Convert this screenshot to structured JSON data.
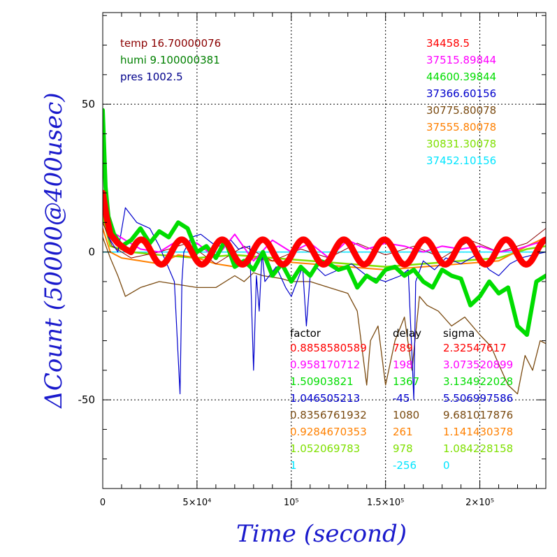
{
  "chart_data": {
    "type": "line",
    "title": "",
    "xlabel": "Time (second)",
    "ylabel": "ΔCount (50000@400usec)",
    "xlim": [
      0,
      235000
    ],
    "ylim": [
      -80,
      81
    ],
    "grid": true,
    "x_ticks": [
      {
        "value": 0,
        "label": "0"
      },
      {
        "value": 50000,
        "label": "5×10⁴"
      },
      {
        "value": 100000,
        "label": "10⁵"
      },
      {
        "value": 150000,
        "label": "1.5×10⁵"
      },
      {
        "value": 200000,
        "label": "2×10⁵"
      }
    ],
    "y_ticks": [
      {
        "value": 50,
        "label": "50"
      },
      {
        "value": 0,
        "label": "0"
      },
      {
        "value": -50,
        "label": "-50"
      }
    ],
    "env_labels": [
      {
        "text": "temp 16.70000076",
        "color": "#8b0000"
      },
      {
        "text": "humi 9.100000381",
        "color": "#008000"
      },
      {
        "text": "pres 1002.5",
        "color": "#00008b"
      }
    ],
    "base_counts": [
      {
        "text": "34458.5",
        "color": "#ff0000"
      },
      {
        "text": "37515.89844",
        "color": "#ff00ff"
      },
      {
        "text": "44600.39844",
        "color": "#00dd00"
      },
      {
        "text": "37366.60156",
        "color": "#0000cc"
      },
      {
        "text": "30775.80078",
        "color": "#7a4a10"
      },
      {
        "text": "37555.80078",
        "color": "#ff8000"
      },
      {
        "text": "30831.30078",
        "color": "#7fe000"
      },
      {
        "text": "37452.10156",
        "color": "#00e5ff"
      }
    ],
    "table_headers": [
      "factor",
      "delay",
      "sigma"
    ],
    "table_rows": [
      {
        "factor": "0.8858580589",
        "delay": "789",
        "sigma": "2.32547617",
        "color": "#ff0000"
      },
      {
        "factor": "0.958170712",
        "delay": "198",
        "sigma": "3.073520899",
        "color": "#ff00ff"
      },
      {
        "factor": "1.50903821",
        "delay": "1367",
        "sigma": "3.134922028",
        "color": "#00dd00"
      },
      {
        "factor": "1.046505213",
        "delay": "-45",
        "sigma": "5.506997586",
        "color": "#0000cc"
      },
      {
        "factor": "0.8356761932",
        "delay": "1080",
        "sigma": "9.681017876",
        "color": "#7a4a10"
      },
      {
        "factor": "0.9284670353",
        "delay": "261",
        "sigma": "1.141430378",
        "color": "#ff8000"
      },
      {
        "factor": "1.052069783",
        "delay": "978",
        "sigma": "1.084228158",
        "color": "#7fe000"
      },
      {
        "factor": "1",
        "delay": "-256",
        "sigma": "0",
        "color": "#00e5ff"
      }
    ],
    "series": [
      {
        "color": "#00e5ff",
        "width": 1.5,
        "x": [
          0,
          20000,
          50000,
          100000,
          150000,
          200000,
          235000
        ],
        "y": [
          0,
          0,
          0,
          0,
          0,
          0,
          0
        ]
      },
      {
        "color": "#7fe000",
        "width": 2.5,
        "x": [
          0,
          4000,
          15000,
          30000,
          50000,
          70000,
          90000,
          110000,
          130000,
          150000,
          170000,
          190000,
          210000,
          225000,
          235000
        ],
        "y": [
          12,
          2,
          0,
          -1,
          -2,
          -1,
          -2,
          -3,
          -4,
          -5,
          -4,
          -3,
          -2,
          1,
          2
        ]
      },
      {
        "color": "#ff8000",
        "width": 2,
        "x": [
          0,
          4000,
          10000,
          20000,
          30000,
          40000,
          50000,
          60000,
          70000,
          80000,
          90000,
          110000,
          130000,
          150000,
          170000,
          190000,
          210000,
          225000,
          235000
        ],
        "y": [
          8,
          0,
          -2,
          -3,
          -4,
          -1,
          -2,
          -4,
          -5,
          -2,
          -3,
          -4,
          -5,
          -6,
          -5,
          -4,
          -3,
          2,
          5
        ]
      },
      {
        "color": "#8b0000",
        "width": 1,
        "x": [
          0,
          5000,
          15000,
          30000,
          45000,
          60000,
          75000,
          90000,
          105000,
          120000,
          135000,
          150000,
          165000,
          180000,
          195000,
          210000,
          225000,
          235000
        ],
        "y": [
          10,
          2,
          -2,
          0,
          3,
          -4,
          2,
          -3,
          1,
          -2,
          3,
          -1,
          2,
          -2,
          4,
          0,
          3,
          8
        ]
      },
      {
        "color": "#7a4a10",
        "width": 1.3,
        "x": [
          0,
          4000,
          8000,
          12000,
          20000,
          30000,
          40000,
          50000,
          60000,
          70000,
          75000,
          80000,
          85000,
          95000,
          100000,
          110000,
          120000,
          130000,
          135000,
          140000,
          142000,
          146000,
          150000,
          155000,
          160000,
          164000,
          168000,
          172000,
          178000,
          185000,
          192000,
          200000,
          206000,
          210000,
          215000,
          220000,
          224000,
          228000,
          232000,
          235000
        ],
        "y": [
          5,
          -2,
          -8,
          -15,
          -12,
          -10,
          -11,
          -12,
          -12,
          -8,
          -10,
          -7,
          -8,
          -9,
          -10,
          -10,
          -12,
          -14,
          -20,
          -45,
          -30,
          -25,
          -45,
          -30,
          -22,
          -40,
          -15,
          -18,
          -20,
          -25,
          -22,
          -28,
          -32,
          -38,
          -45,
          -48,
          -35,
          -40,
          -30,
          -31
        ]
      },
      {
        "color": "#0000cc",
        "width": 1.2,
        "x": [
          0,
          3000,
          8000,
          12000,
          18000,
          25000,
          30000,
          38000,
          41000,
          42000,
          43000,
          47000,
          52000,
          58000,
          62000,
          68000,
          72000,
          78000,
          80000,
          81500,
          83000,
          84500,
          86000,
          92000,
          97000,
          100000,
          106000,
          108000,
          110000,
          113000,
          118000,
          125000,
          132000,
          140000,
          150000,
          158000,
          162000,
          164000,
          165000,
          166000,
          170000,
          176000,
          182000,
          190000,
          198000,
          205000,
          210000,
          216000,
          222000,
          228000,
          235000
        ],
        "y": [
          15,
          5,
          0,
          15,
          10,
          8,
          2,
          -10,
          -48,
          -10,
          0,
          5,
          6,
          3,
          2,
          4,
          1,
          2,
          -40,
          -8,
          -20,
          0,
          -10,
          -5,
          -12,
          -15,
          -5,
          -25,
          -8,
          -5,
          -8,
          -6,
          -4,
          -8,
          -10,
          -8,
          -6,
          -35,
          -50,
          -10,
          -3,
          -6,
          -2,
          -4,
          -1,
          -6,
          -8,
          -4,
          -2,
          -1,
          0
        ]
      },
      {
        "color": "#ff00ff",
        "width": 2,
        "x": [
          0,
          3000,
          7000,
          12000,
          20000,
          30000,
          40000,
          50000,
          60000,
          70000,
          80000,
          90000,
          100000,
          110000,
          120000,
          130000,
          140000,
          150000,
          160000,
          170000,
          180000,
          190000,
          200000,
          210000,
          220000,
          230000,
          235000
        ],
        "y": [
          16,
          8,
          6,
          4,
          1,
          0,
          4,
          3,
          -2,
          6,
          -3,
          4,
          0,
          3,
          -2,
          4,
          1,
          3,
          2,
          0,
          2,
          1,
          2,
          0,
          1,
          3,
          4
        ]
      },
      {
        "color": "#00dd00",
        "width": 6,
        "x": [
          0,
          1500,
          3000,
          6000,
          10000,
          15000,
          20000,
          25000,
          30000,
          35000,
          40000,
          45000,
          50000,
          55000,
          60000,
          65000,
          70000,
          75000,
          80000,
          85000,
          90000,
          95000,
          100000,
          105000,
          110000,
          115000,
          120000,
          125000,
          130000,
          135000,
          140000,
          145000,
          150000,
          155000,
          160000,
          165000,
          170000,
          175000,
          180000,
          185000,
          190000,
          195000,
          200000,
          205000,
          210000,
          215000,
          220000,
          225000,
          230000,
          235000
        ],
        "y": [
          48,
          22,
          12,
          6,
          2,
          4,
          8,
          3,
          7,
          5,
          10,
          8,
          0,
          2,
          -2,
          4,
          -5,
          -3,
          -6,
          0,
          -8,
          -4,
          -10,
          -5,
          -8,
          -3,
          -4,
          -6,
          -5,
          -12,
          -8,
          -10,
          -6,
          -5,
          -8,
          -6,
          -10,
          -12,
          -6,
          -8,
          -9,
          -18,
          -15,
          -10,
          -14,
          -12,
          -25,
          -28,
          -10,
          -8
        ]
      },
      {
        "color": "#ff0000",
        "width": 9,
        "wave": true,
        "amplitude": 4.2,
        "period": 21500,
        "start": 15000,
        "end": 235000,
        "x": [
          0,
          2000,
          4000,
          8000,
          12000,
          15000
        ],
        "y": [
          20,
          12,
          6,
          3,
          1,
          0
        ]
      }
    ]
  }
}
